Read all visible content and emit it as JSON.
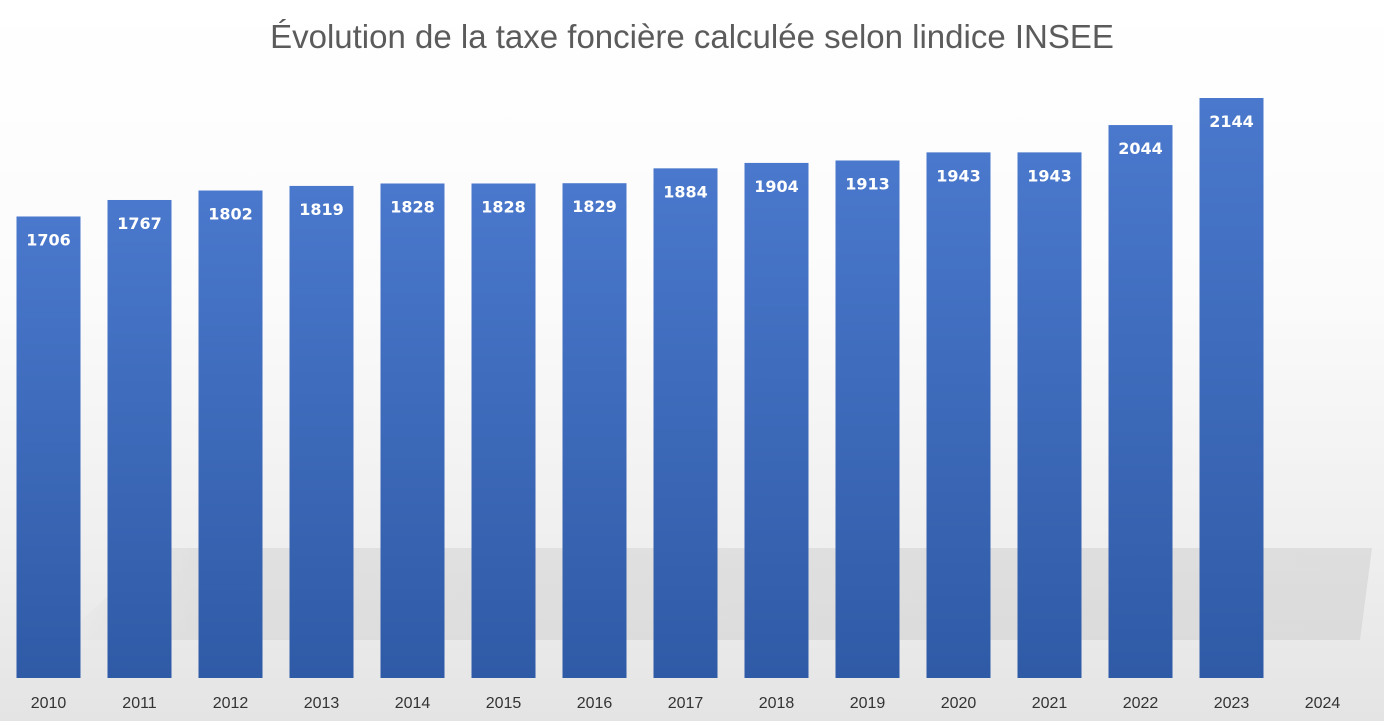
{
  "chart_data": {
    "type": "bar",
    "title": "Évolution de la taxe foncière calculée selon lindice INSEE",
    "xlabel": "",
    "ylabel": "",
    "categories": [
      "2010",
      "2011",
      "2012",
      "2013",
      "2014",
      "2015",
      "2016",
      "2017",
      "2018",
      "2019",
      "2020",
      "2021",
      "2022",
      "2023",
      "2024"
    ],
    "values": [
      1706,
      1767,
      1802,
      1819,
      1828,
      1828,
      1829,
      1884,
      1904,
      1913,
      1943,
      1943,
      2044,
      2144,
      null
    ],
    "value_labels": [
      "1706",
      "1767",
      "1802",
      "1819",
      "1828",
      "1828",
      "1829",
      "1884",
      "1904",
      "1913",
      "1943",
      "1943",
      "2044",
      "2144",
      ""
    ],
    "ylim": [
      0,
      2300
    ],
    "grid": false,
    "legend": "none",
    "colors": {
      "bar_top": "#4a78cc",
      "bar_bottom": "#2f5aa6",
      "title": "#5b5b5b",
      "tick": "#333333",
      "data_label": "#ffffff"
    }
  }
}
